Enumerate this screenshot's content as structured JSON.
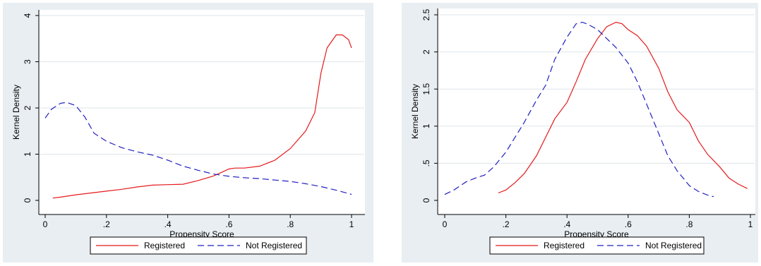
{
  "chart_data": [
    {
      "type": "line",
      "title": "",
      "xlabel": "Propensity Score",
      "ylabel": "Kernel Density",
      "xlim": [
        0,
        1
      ],
      "ylim": [
        0,
        4
      ],
      "xticks": [
        "0",
        ".2",
        ".4",
        ".6",
        ".8",
        "1"
      ],
      "yticks": [
        "0",
        "1",
        "2",
        "3",
        "4"
      ],
      "grid": true,
      "legend_position": "bottom",
      "series": [
        {
          "name": "Registered",
          "color": "#e41a1c",
          "dash": "solid",
          "x": [
            0.025,
            0.05,
            0.1,
            0.15,
            0.2,
            0.25,
            0.3,
            0.35,
            0.4,
            0.45,
            0.5,
            0.55,
            0.58,
            0.6,
            0.62,
            0.65,
            0.7,
            0.75,
            0.8,
            0.85,
            0.88,
            0.9,
            0.92,
            0.95,
            0.97,
            0.99,
            1.0
          ],
          "y": [
            0.05,
            0.07,
            0.12,
            0.16,
            0.2,
            0.24,
            0.29,
            0.33,
            0.34,
            0.35,
            0.43,
            0.53,
            0.62,
            0.68,
            0.7,
            0.7,
            0.74,
            0.87,
            1.12,
            1.5,
            1.9,
            2.75,
            3.3,
            3.58,
            3.58,
            3.48,
            3.3
          ]
        },
        {
          "name": "Not Registered",
          "color": "#2020c0",
          "dash": "dashed",
          "x": [
            0.0,
            0.02,
            0.05,
            0.07,
            0.1,
            0.13,
            0.16,
            0.2,
            0.25,
            0.3,
            0.35,
            0.4,
            0.45,
            0.5,
            0.55,
            0.6,
            0.65,
            0.7,
            0.75,
            0.8,
            0.85,
            0.9,
            0.95,
            1.0
          ],
          "y": [
            1.78,
            1.97,
            2.1,
            2.12,
            2.05,
            1.8,
            1.45,
            1.28,
            1.14,
            1.05,
            0.98,
            0.87,
            0.74,
            0.65,
            0.57,
            0.52,
            0.49,
            0.47,
            0.44,
            0.41,
            0.36,
            0.3,
            0.22,
            0.13
          ]
        }
      ]
    },
    {
      "type": "line",
      "title": "",
      "xlabel": "Propensity Score",
      "ylabel": "Kernel Density",
      "xlim": [
        0,
        1
      ],
      "ylim": [
        0,
        2.5
      ],
      "xticks": [
        "0",
        ".2",
        ".4",
        ".6",
        ".8",
        "1"
      ],
      "yticks": [
        "0",
        ".5",
        "1",
        "1.5",
        "2",
        "2.5"
      ],
      "grid": true,
      "legend_position": "bottom",
      "series": [
        {
          "name": "Registered",
          "color": "#e41a1c",
          "dash": "solid",
          "x": [
            0.175,
            0.2,
            0.23,
            0.26,
            0.3,
            0.33,
            0.36,
            0.4,
            0.43,
            0.46,
            0.5,
            0.53,
            0.56,
            0.58,
            0.6,
            0.63,
            0.66,
            0.7,
            0.73,
            0.76,
            0.8,
            0.83,
            0.86,
            0.9,
            0.93,
            0.96,
            0.99
          ],
          "y": [
            0.1,
            0.14,
            0.24,
            0.36,
            0.6,
            0.85,
            1.1,
            1.32,
            1.6,
            1.9,
            2.18,
            2.34,
            2.4,
            2.38,
            2.3,
            2.22,
            2.08,
            1.78,
            1.46,
            1.22,
            1.05,
            0.8,
            0.62,
            0.45,
            0.3,
            0.22,
            0.16
          ]
        },
        {
          "name": "Not Registered",
          "color": "#2020c0",
          "dash": "dashed",
          "x": [
            0.0,
            0.03,
            0.07,
            0.1,
            0.13,
            0.16,
            0.2,
            0.23,
            0.26,
            0.3,
            0.33,
            0.36,
            0.4,
            0.43,
            0.45,
            0.47,
            0.5,
            0.53,
            0.56,
            0.6,
            0.63,
            0.66,
            0.7,
            0.73,
            0.76,
            0.8,
            0.83,
            0.86,
            0.88
          ],
          "y": [
            0.08,
            0.14,
            0.25,
            0.3,
            0.34,
            0.45,
            0.65,
            0.85,
            1.05,
            1.35,
            1.55,
            1.9,
            2.2,
            2.38,
            2.4,
            2.37,
            2.3,
            2.18,
            2.06,
            1.85,
            1.6,
            1.3,
            0.9,
            0.6,
            0.4,
            0.2,
            0.12,
            0.07,
            0.05
          ]
        }
      ]
    }
  ]
}
